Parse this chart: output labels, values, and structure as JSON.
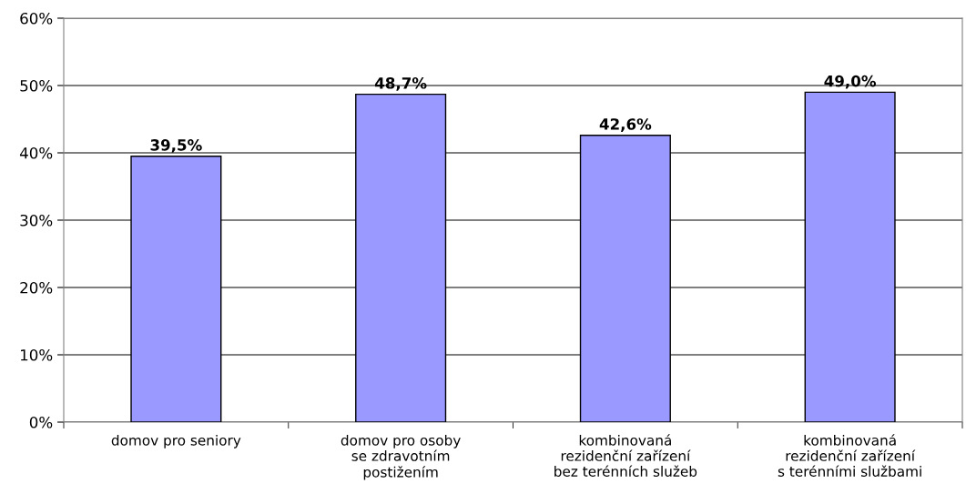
{
  "chart_data": {
    "type": "bar",
    "categories": [
      "domov pro seniory",
      "domov pro osoby\nse zdravotním\npostižením",
      "kombinovaná\nrezidenční zařízení\nbez terénních služeb",
      "kombinovaná\nrezidenční zařízení\ns terénními službami"
    ],
    "values": [
      39.5,
      48.7,
      42.6,
      49.0
    ],
    "value_labels": [
      "39,5%",
      "48,7%",
      "42,6%",
      "49,0%"
    ],
    "color": "#9999ff",
    "ylim": [
      0,
      60
    ],
    "yticks": [
      {
        "value": 0,
        "label": "0%"
      },
      {
        "value": 10,
        "label": "10%"
      },
      {
        "value": 20,
        "label": "20%"
      },
      {
        "value": 30,
        "label": "30%"
      },
      {
        "value": 40,
        "label": "40%"
      },
      {
        "value": 50,
        "label": "50%"
      },
      {
        "value": 60,
        "label": "60%"
      }
    ],
    "grid": "y"
  }
}
